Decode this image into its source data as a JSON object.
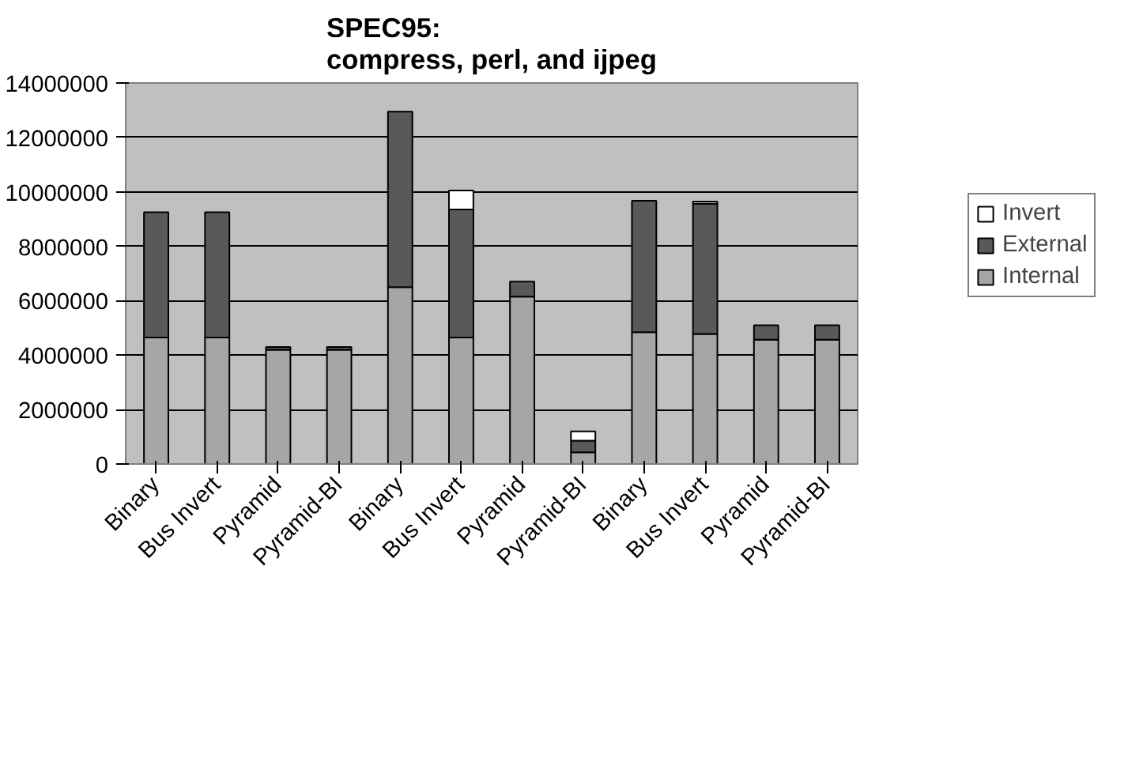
{
  "chart_data": {
    "type": "bar",
    "title": "SPEC95:\ncompress, perl, and ijpeg",
    "stacked": true,
    "categories": [
      "Binary",
      "Bus Invert",
      "Pyramid",
      "Pyramid-BI",
      "Binary",
      "Bus Invert",
      "Pyramid",
      "Pyramid-BI",
      "Binary",
      "Bus Invert",
      "Pyramid",
      "Pyramid-BI"
    ],
    "series": [
      {
        "name": "Internal",
        "color": "#a6a6a6",
        "values": [
          4650000,
          4650000,
          4200000,
          4200000,
          6500000,
          4650000,
          6150000,
          430000,
          4840000,
          4780000,
          4570000,
          4570000
        ]
      },
      {
        "name": "External",
        "color": "#595959",
        "values": [
          4600000,
          4600000,
          100000,
          100000,
          6450000,
          4700000,
          550000,
          430000,
          4830000,
          4780000,
          530000,
          530000
        ]
      },
      {
        "name": "Invert",
        "color": "#ffffff",
        "values": [
          null,
          null,
          null,
          null,
          null,
          700000,
          null,
          340000,
          null,
          80000,
          null,
          null
        ]
      }
    ],
    "ylim": [
      0,
      14000000
    ],
    "yticks": [
      0,
      2000000,
      4000000,
      6000000,
      8000000,
      10000000,
      12000000,
      14000000
    ],
    "grid": "y",
    "legend": "right"
  }
}
